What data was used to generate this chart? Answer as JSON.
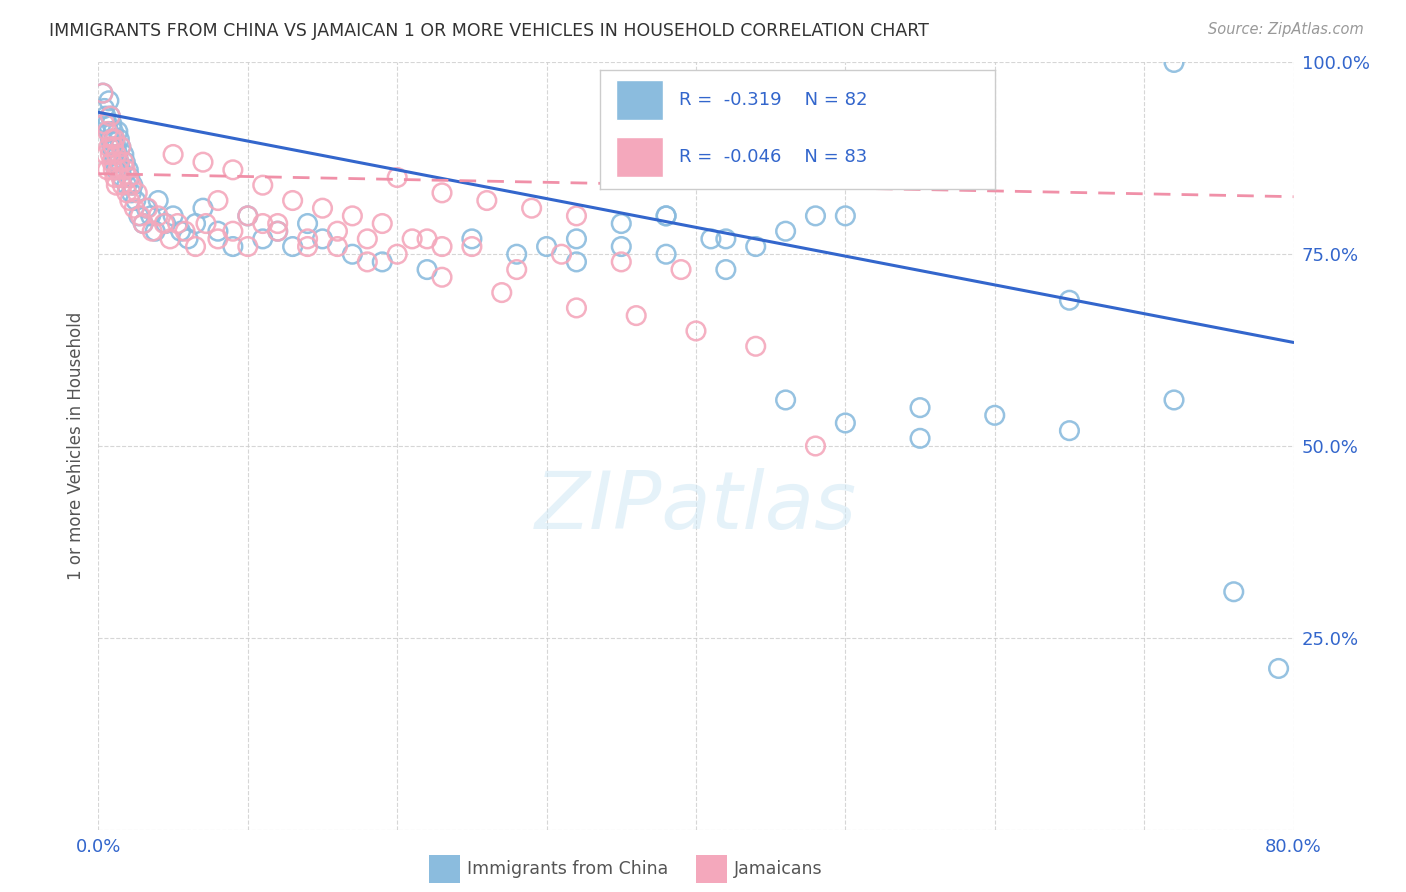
{
  "title": "IMMIGRANTS FROM CHINA VS JAMAICAN 1 OR MORE VEHICLES IN HOUSEHOLD CORRELATION CHART",
  "source": "Source: ZipAtlas.com",
  "ylabel_label": "1 or more Vehicles in Household",
  "legend_label1": "Immigrants from China",
  "legend_label2": "Jamaicans",
  "R1": -0.319,
  "N1": 82,
  "R2": -0.046,
  "N2": 83,
  "color_china": "#8bbcde",
  "color_jamaica": "#f4a8bc",
  "line_china": "#3366cc",
  "line_jamaica": "#f090a8",
  "background_color": "#ffffff",
  "grid_color": "#cccccc",
  "xlim": [
    0.0,
    0.8
  ],
  "ylim": [
    0.0,
    1.0
  ],
  "china_line_x0": 0.0,
  "china_line_y0": 0.935,
  "china_line_x1": 0.8,
  "china_line_y1": 0.635,
  "jamaica_line_x0": 0.0,
  "jamaica_line_y0": 0.855,
  "jamaica_line_x1": 0.8,
  "jamaica_line_y1": 0.825,
  "china_x": [
    0.003,
    0.004,
    0.005,
    0.006,
    0.007,
    0.007,
    0.008,
    0.008,
    0.009,
    0.009,
    0.01,
    0.01,
    0.011,
    0.011,
    0.012,
    0.012,
    0.013,
    0.013,
    0.014,
    0.014,
    0.015,
    0.015,
    0.016,
    0.017,
    0.018,
    0.019,
    0.02,
    0.021,
    0.022,
    0.023,
    0.025,
    0.027,
    0.03,
    0.032,
    0.035,
    0.038,
    0.04,
    0.045,
    0.05,
    0.055,
    0.06,
    0.065,
    0.07,
    0.08,
    0.09,
    0.1,
    0.11,
    0.12,
    0.13,
    0.14,
    0.15,
    0.17,
    0.19,
    0.22,
    0.25,
    0.28,
    0.32,
    0.35,
    0.38,
    0.42,
    0.46,
    0.5,
    0.55,
    0.38,
    0.42,
    0.46,
    0.5,
    0.55,
    0.6,
    0.65,
    0.3,
    0.32,
    0.35,
    0.38,
    0.41,
    0.44,
    0.48,
    0.65,
    0.72,
    0.76,
    0.79,
    0.72
  ],
  "china_y": [
    0.96,
    0.94,
    0.93,
    0.92,
    0.91,
    0.95,
    0.9,
    0.93,
    0.89,
    0.92,
    0.88,
    0.91,
    0.87,
    0.9,
    0.86,
    0.89,
    0.88,
    0.91,
    0.87,
    0.9,
    0.86,
    0.89,
    0.85,
    0.88,
    0.87,
    0.84,
    0.86,
    0.85,
    0.83,
    0.84,
    0.82,
    0.8,
    0.79,
    0.81,
    0.8,
    0.78,
    0.82,
    0.79,
    0.8,
    0.78,
    0.77,
    0.79,
    0.81,
    0.78,
    0.76,
    0.8,
    0.77,
    0.78,
    0.76,
    0.79,
    0.77,
    0.75,
    0.74,
    0.73,
    0.77,
    0.75,
    0.74,
    0.76,
    0.75,
    0.73,
    0.56,
    0.53,
    0.51,
    0.8,
    0.77,
    0.78,
    0.8,
    0.55,
    0.54,
    0.52,
    0.76,
    0.77,
    0.79,
    0.8,
    0.77,
    0.76,
    0.8,
    0.69,
    0.56,
    0.31,
    0.21,
    1.0
  ],
  "jamaica_x": [
    0.003,
    0.004,
    0.005,
    0.006,
    0.006,
    0.007,
    0.008,
    0.008,
    0.009,
    0.009,
    0.01,
    0.01,
    0.011,
    0.011,
    0.012,
    0.012,
    0.013,
    0.014,
    0.015,
    0.015,
    0.016,
    0.017,
    0.018,
    0.019,
    0.02,
    0.021,
    0.022,
    0.024,
    0.026,
    0.028,
    0.03,
    0.033,
    0.036,
    0.04,
    0.044,
    0.048,
    0.053,
    0.058,
    0.065,
    0.072,
    0.08,
    0.09,
    0.1,
    0.11,
    0.12,
    0.14,
    0.16,
    0.18,
    0.2,
    0.22,
    0.25,
    0.28,
    0.31,
    0.35,
    0.39,
    0.2,
    0.23,
    0.26,
    0.29,
    0.32,
    0.05,
    0.07,
    0.09,
    0.11,
    0.13,
    0.15,
    0.17,
    0.19,
    0.21,
    0.23,
    0.08,
    0.1,
    0.12,
    0.14,
    0.16,
    0.18,
    0.23,
    0.27,
    0.32,
    0.36,
    0.4,
    0.44,
    0.48
  ],
  "jamaica_y": [
    0.96,
    0.92,
    0.88,
    0.91,
    0.86,
    0.89,
    0.88,
    0.93,
    0.87,
    0.9,
    0.86,
    0.89,
    0.85,
    0.9,
    0.88,
    0.84,
    0.86,
    0.87,
    0.85,
    0.89,
    0.84,
    0.87,
    0.86,
    0.83,
    0.85,
    0.82,
    0.84,
    0.81,
    0.83,
    0.8,
    0.79,
    0.81,
    0.78,
    0.8,
    0.79,
    0.77,
    0.79,
    0.78,
    0.76,
    0.79,
    0.77,
    0.78,
    0.76,
    0.79,
    0.78,
    0.76,
    0.78,
    0.77,
    0.75,
    0.77,
    0.76,
    0.73,
    0.75,
    0.74,
    0.73,
    0.85,
    0.83,
    0.82,
    0.81,
    0.8,
    0.88,
    0.87,
    0.86,
    0.84,
    0.82,
    0.81,
    0.8,
    0.79,
    0.77,
    0.76,
    0.82,
    0.8,
    0.79,
    0.77,
    0.76,
    0.74,
    0.72,
    0.7,
    0.68,
    0.67,
    0.65,
    0.63,
    0.5
  ]
}
